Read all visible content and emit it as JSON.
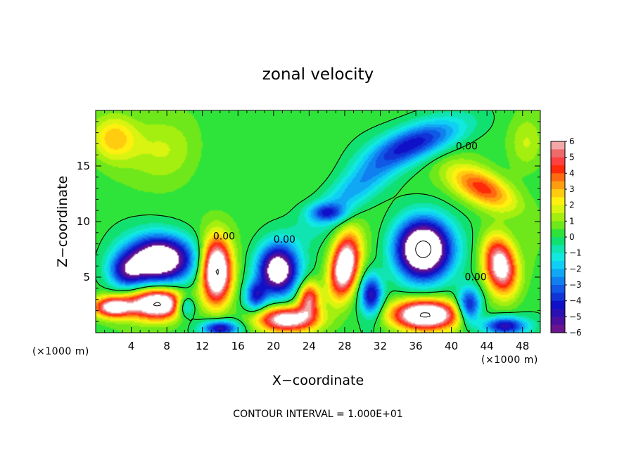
{
  "chart_data": {
    "type": "heatmap",
    "title": "zonal velocity",
    "xlabel": "X−coordinate",
    "ylabel": "Z−coordinate",
    "x_unit_left": "(×1000 m)",
    "x_unit_right": "(×1000 m)",
    "footer": "CONTOUR INTERVAL = 1.000E+01",
    "xlim": [
      0,
      50
    ],
    "ylim": [
      0,
      20
    ],
    "x_ticks": [
      4,
      8,
      12,
      16,
      20,
      24,
      28,
      32,
      36,
      40,
      44,
      48
    ],
    "y_ticks": [
      5,
      10,
      15
    ],
    "colorbar": {
      "ticks": [
        "6",
        "5",
        "4",
        "3",
        "2",
        "1",
        "0",
        "−1",
        "−2",
        "−3",
        "−4",
        "−5",
        "−6"
      ],
      "levels": [
        {
          "lo": 5.5,
          "color": "#f4a7a7"
        },
        {
          "lo": 5.0,
          "color": "#ef6a6a"
        },
        {
          "lo": 4.5,
          "color": "#ff4040"
        },
        {
          "lo": 4.0,
          "color": "#ff2a0a"
        },
        {
          "lo": 3.5,
          "color": "#ff6a10"
        },
        {
          "lo": 3.0,
          "color": "#ff9e10"
        },
        {
          "lo": 2.5,
          "color": "#ffcc10"
        },
        {
          "lo": 2.0,
          "color": "#fff010"
        },
        {
          "lo": 1.5,
          "color": "#d8f410"
        },
        {
          "lo": 1.0,
          "color": "#a4ef10"
        },
        {
          "lo": 0.5,
          "color": "#6ee81a"
        },
        {
          "lo": 0.0,
          "color": "#2ee43a"
        },
        {
          "lo": -0.5,
          "color": "#10e070"
        },
        {
          "lo": -1.0,
          "color": "#10e4b0"
        },
        {
          "lo": -1.5,
          "color": "#10e8e0"
        },
        {
          "lo": -2.0,
          "color": "#10cff4"
        },
        {
          "lo": -2.5,
          "color": "#10a8f4"
        },
        {
          "lo": -3.0,
          "color": "#1080f0"
        },
        {
          "lo": -3.5,
          "color": "#1058e6"
        },
        {
          "lo": -4.0,
          "color": "#1034d6"
        },
        {
          "lo": -4.5,
          "color": "#1010c8"
        },
        {
          "lo": -5.0,
          "color": "#2a10b4"
        },
        {
          "lo": -5.5,
          "color": "#4a10a0"
        },
        {
          "lo": -6.0,
          "color": "#6a1490"
        }
      ]
    },
    "contour_labels": [
      {
        "text": "0.00",
        "x": 40.5,
        "z": 16.5
      },
      {
        "text": "0.00",
        "x": 13.2,
        "z": 8.4
      },
      {
        "text": "0.00",
        "x": 20.0,
        "z": 8.1
      },
      {
        "text": "0.00",
        "x": 41.5,
        "z": 4.7
      }
    ],
    "features": [
      {
        "x": 7.2,
        "z": 6.6,
        "sx": 3.6,
        "sz": 2.0,
        "a": -9,
        "tilt": 0
      },
      {
        "x": 13.6,
        "z": 5.5,
        "sx": 1.6,
        "sz": 2.8,
        "a": 9,
        "tilt": 0
      },
      {
        "x": 20.5,
        "z": 5.6,
        "sx": 2.2,
        "sz": 2.2,
        "a": -8,
        "tilt": 0
      },
      {
        "x": 28.0,
        "z": 6.0,
        "sx": 1.6,
        "sz": 2.6,
        "a": 8,
        "tilt": 0.5
      },
      {
        "x": 36.8,
        "z": 7.5,
        "sx": 3.0,
        "sz": 2.6,
        "a": -10,
        "tilt": 0
      },
      {
        "x": 45.5,
        "z": 6.0,
        "sx": 1.8,
        "sz": 2.4,
        "a": 7,
        "tilt": -0.3
      },
      {
        "x": 7.0,
        "z": 2.6,
        "sx": 3.0,
        "sz": 1.3,
        "a": 9,
        "tilt": 0
      },
      {
        "x": 2.0,
        "z": 2.3,
        "sx": 2.2,
        "sz": 0.9,
        "a": 7,
        "tilt": 0
      },
      {
        "x": 21.5,
        "z": 1.2,
        "sx": 3.2,
        "sz": 1.1,
        "a": 7,
        "tilt": 0
      },
      {
        "x": 37.0,
        "z": 1.6,
        "sx": 3.6,
        "sz": 1.3,
        "a": 9,
        "tilt": 0
      },
      {
        "x": 14.0,
        "z": 0.4,
        "sx": 2.0,
        "sz": 0.7,
        "a": -5,
        "tilt": 0
      },
      {
        "x": 46.0,
        "z": 0.6,
        "sx": 2.4,
        "sz": 0.8,
        "a": -5,
        "tilt": 0
      },
      {
        "x": 36.5,
        "z": 17.2,
        "sx": 5.0,
        "sz": 1.6,
        "a": -4,
        "tilt": 0.25
      },
      {
        "x": 29.5,
        "z": 13.2,
        "sx": 5.5,
        "sz": 2.0,
        "a": -2.5,
        "tilt": 0.6
      },
      {
        "x": 26.0,
        "z": 10.8,
        "sx": 2.0,
        "sz": 0.8,
        "a": -3,
        "tilt": 0
      },
      {
        "x": 3.5,
        "z": 5.5,
        "sx": 2.0,
        "sz": 1.5,
        "a": -4,
        "tilt": 0
      },
      {
        "x": 43.5,
        "z": 13.0,
        "sx": 3.6,
        "sz": 1.6,
        "a": 4,
        "tilt": -0.3
      },
      {
        "x": 2.0,
        "z": 17.5,
        "sx": 2.5,
        "sz": 2.0,
        "a": 2.5,
        "tilt": 0
      },
      {
        "x": 48.5,
        "z": 17.0,
        "sx": 2.0,
        "sz": 2.5,
        "a": 1.5,
        "tilt": 0
      },
      {
        "x": 8.0,
        "z": 16.5,
        "sx": 4.0,
        "sz": 3.0,
        "a": 1.2,
        "tilt": 0
      },
      {
        "x": 18.0,
        "z": 3.3,
        "sx": 1.2,
        "sz": 1.3,
        "a": -4,
        "tilt": 0
      },
      {
        "x": 24.0,
        "z": 3.0,
        "sx": 1.2,
        "sz": 1.5,
        "a": 5,
        "tilt": 0
      },
      {
        "x": 31.0,
        "z": 3.4,
        "sx": 1.2,
        "sz": 1.8,
        "a": -5,
        "tilt": 0
      },
      {
        "x": 42.0,
        "z": 2.4,
        "sx": 1.3,
        "sz": 1.6,
        "a": -5,
        "tilt": 0
      },
      {
        "x": 10.0,
        "z": 2.4,
        "sx": 1.2,
        "sz": 1.0,
        "a": -4,
        "tilt": 0
      }
    ]
  }
}
